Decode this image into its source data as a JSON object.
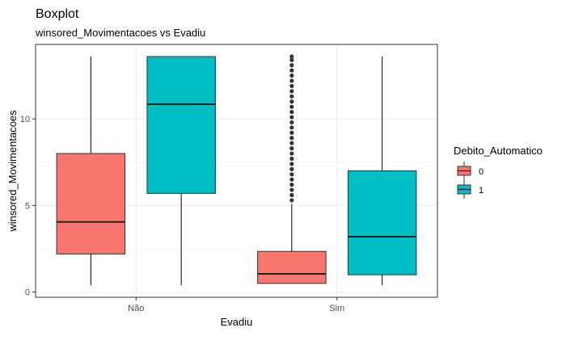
{
  "chart_data": {
    "type": "boxplot",
    "title": "Boxplot",
    "subtitle": "winsored_Movimentacoes vs Evadiu",
    "xlabel": "Evadiu",
    "ylabel": "winsored_Movimentacoes",
    "categories": [
      "Não",
      "Sim"
    ],
    "yticks": [
      0,
      5,
      10
    ],
    "ylim": [
      -0.3,
      14.3
    ],
    "grid": true,
    "legend": {
      "title": "Debito_Automatico",
      "position": "right",
      "entries": [
        {
          "label": "0",
          "color": "#F8766D"
        },
        {
          "label": "1",
          "color": "#00BFC4"
        }
      ]
    },
    "series": [
      {
        "group": "0",
        "color": "#F8766D",
        "boxes": [
          {
            "category": "Não",
            "min": 0.4,
            "q1": 2.2,
            "median": 4.05,
            "q3": 8.0,
            "max": 13.6,
            "outliers": []
          },
          {
            "category": "Sim",
            "min": 0.5,
            "q1": 0.5,
            "median": 1.05,
            "q3": 2.35,
            "max": 5.1,
            "outliers": [
              5.3,
              5.6,
              5.9,
              6.2,
              6.5,
              6.8,
              7.1,
              7.4,
              7.7,
              8.0,
              8.3,
              8.6,
              8.9,
              9.2,
              9.5,
              9.8,
              10.1,
              10.4,
              10.7,
              11.0,
              11.3,
              11.6,
              11.9,
              12.2,
              12.5,
              12.8,
              13.1,
              13.4,
              13.6
            ]
          }
        ]
      },
      {
        "group": "1",
        "color": "#00BFC4",
        "boxes": [
          {
            "category": "Não",
            "min": 0.4,
            "q1": 5.7,
            "median": 10.85,
            "q3": 13.6,
            "max": 13.6,
            "outliers": []
          },
          {
            "category": "Sim",
            "min": 0.4,
            "q1": 1.0,
            "median": 3.2,
            "q3": 7.0,
            "max": 13.6,
            "outliers": []
          }
        ]
      }
    ]
  }
}
